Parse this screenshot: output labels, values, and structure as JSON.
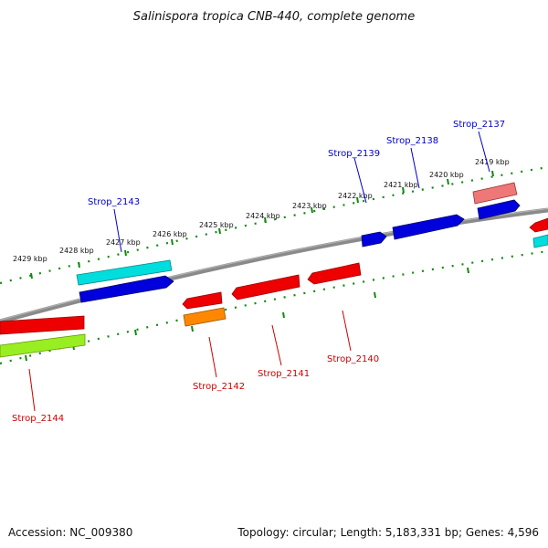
{
  "title": "Salinispora tropica CNB-440, complete genome",
  "footer": {
    "accession": "Accession: NC_009380",
    "topology": "Topology: circular; Length: 5,183,331 bp; Genes: 4,596"
  },
  "colors": {
    "backbone": "#888888",
    "tick": "#118811",
    "forward_label": "#0000cc",
    "reverse_label": "#cc0000",
    "red": "#ee0000",
    "blue": "#0000dd",
    "cyan": "#00dddd",
    "orange": "#ff8800",
    "lime": "#99ee22",
    "pink": "#ee7777"
  },
  "scale": {
    "unit": "kbp",
    "tick_labels": [
      "2429 kbp",
      "2428 kbp",
      "2427 kbp",
      "2426 kbp",
      "2425 kbp",
      "2424 kbp",
      "2423 kbp",
      "2422 kbp",
      "2421 kbp",
      "2420 kbp",
      "2419 kbp"
    ]
  },
  "gene_labels": {
    "forward": [
      "Strop_2143",
      "Strop_2139",
      "Strop_2138",
      "Strop_2137"
    ],
    "reverse": [
      "Strop_2144",
      "Strop_2142",
      "Strop_2141",
      "Strop_2140"
    ]
  }
}
